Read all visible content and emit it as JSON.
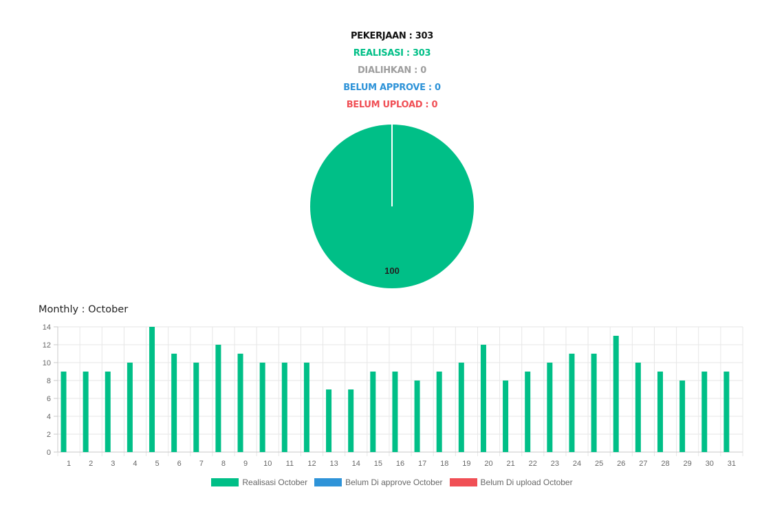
{
  "summary": {
    "pekerjaan": "PEKERJAAN : 303",
    "realisasi": "REALISASI : 303",
    "dialihkan": "DIALIHKAN : 0",
    "belum_approve": "BELUM APPROVE : 0",
    "belum_upload": "BELUM UPLOAD : 0"
  },
  "monthly_title": "Monthly : October",
  "colors": {
    "realisasi": "#00bf87",
    "belum_approve": "#2e93d8",
    "belum_upload": "#f04f55",
    "dialihkan": "#9e9e9e"
  },
  "chart_data": [
    {
      "type": "pie",
      "labels": [
        "Realisasi",
        "Dialihkan",
        "Belum Approve",
        "Belum Upload"
      ],
      "values": [
        100,
        0,
        0,
        0
      ],
      "data_labels": [
        "100"
      ]
    },
    {
      "type": "bar",
      "categories": [
        "1",
        "2",
        "3",
        "4",
        "5",
        "6",
        "7",
        "8",
        "9",
        "10",
        "11",
        "12",
        "13",
        "14",
        "15",
        "16",
        "17",
        "18",
        "19",
        "20",
        "21",
        "22",
        "23",
        "24",
        "25",
        "26",
        "27",
        "28",
        "29",
        "30",
        "31"
      ],
      "series": [
        {
          "name": "Realisasi October",
          "values": [
            9,
            9,
            9,
            10,
            14,
            11,
            10,
            12,
            11,
            10,
            10,
            10,
            7,
            7,
            9,
            9,
            8,
            9,
            10,
            12,
            8,
            9,
            10,
            11,
            11,
            13,
            10,
            9,
            8,
            9,
            9
          ]
        },
        {
          "name": "Belum Di approve October",
          "values": [
            0,
            0,
            0,
            0,
            0,
            0,
            0,
            0,
            0,
            0,
            0,
            0,
            0,
            0,
            0,
            0,
            0,
            0,
            0,
            0,
            0,
            0,
            0,
            0,
            0,
            0,
            0,
            0,
            0,
            0,
            0
          ]
        },
        {
          "name": "Belum Di upload October",
          "values": [
            0,
            0,
            0,
            0,
            0,
            0,
            0,
            0,
            0,
            0,
            0,
            0,
            0,
            0,
            0,
            0,
            0,
            0,
            0,
            0,
            0,
            0,
            0,
            0,
            0,
            0,
            0,
            0,
            0,
            0,
            0
          ]
        }
      ],
      "yticks": [
        "0",
        "2",
        "4",
        "6",
        "8",
        "10",
        "12",
        "14"
      ],
      "ylim": [
        0,
        14
      ],
      "grid": true,
      "legend_position": "bottom"
    }
  ]
}
